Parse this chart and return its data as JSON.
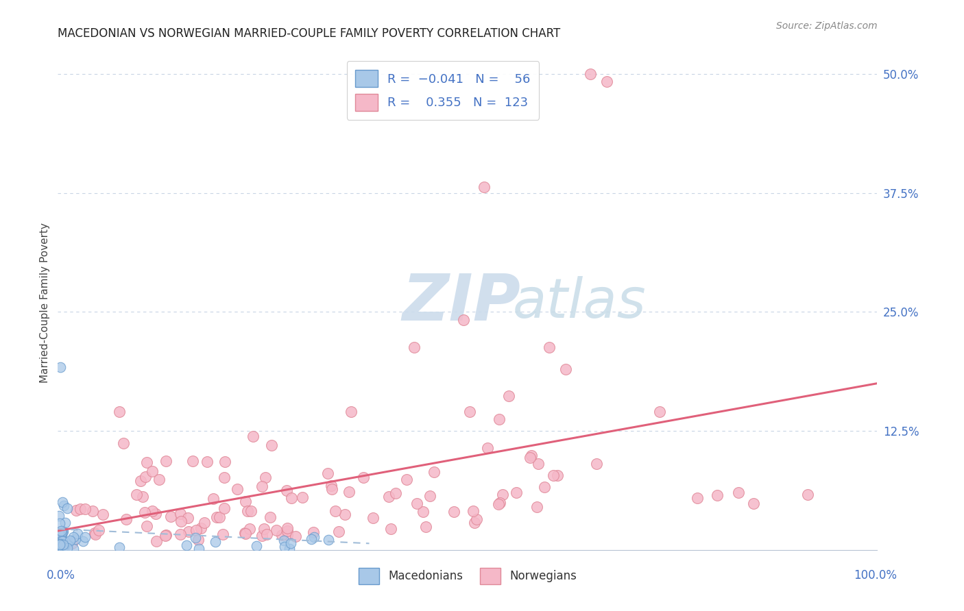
{
  "title": "MACEDONIAN VS NORWEGIAN MARRIED-COUPLE FAMILY POVERTY CORRELATION CHART",
  "source": "Source: ZipAtlas.com",
  "ylabel": "Married-Couple Family Poverty",
  "macedonian_R": -0.041,
  "macedonian_N": 56,
  "norwegian_R": 0.355,
  "norwegian_N": 123,
  "macedonian_color": "#a8c8e8",
  "macedonian_edge": "#6699cc",
  "norwegian_color": "#f5b8c8",
  "norwegian_edge": "#e08898",
  "norwegian_line_color": "#e0607a",
  "macedonian_line_color": "#a0bcd8",
  "background_color": "#ffffff",
  "grid_color": "#c8d4e4",
  "ytick_color": "#4472c4",
  "watermark_ZIP_color": "#ccdcec",
  "watermark_atlas_color": "#c8dce8",
  "xlim": [
    0.0,
    1.0
  ],
  "ylim": [
    0.0,
    0.52
  ],
  "ytick_positions": [
    0.0,
    0.125,
    0.25,
    0.375,
    0.5
  ],
  "ytick_labels": [
    "",
    "12.5%",
    "25.0%",
    "37.5%",
    "50.0%"
  ]
}
